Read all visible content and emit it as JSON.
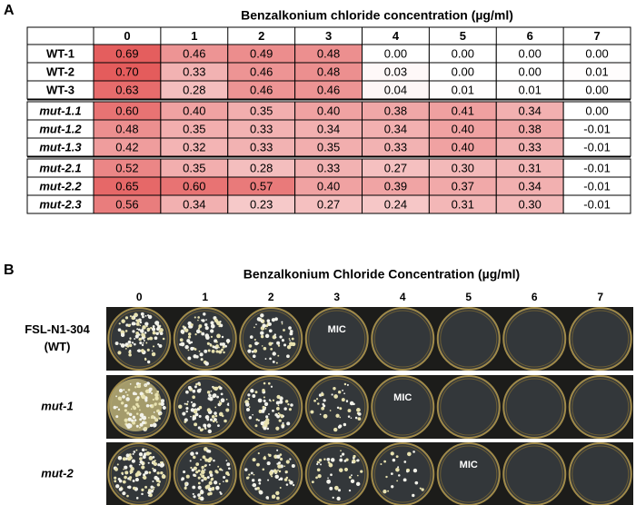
{
  "panel_a": {
    "label": "A",
    "title": "Benzalkonium chloride concentration (µg/ml)",
    "table": {
      "columns": [
        "0",
        "1",
        "2",
        "3",
        "4",
        "5",
        "6",
        "7"
      ],
      "groups": [
        {
          "rows": [
            {
              "name": "WT-1",
              "cells": [
                "0.69",
                "0.46",
                "0.49",
                "0.48",
                "0.00",
                "0.00",
                "0.00",
                "0.00"
              ]
            },
            {
              "name": "WT-2",
              "cells": [
                "0.70",
                "0.33",
                "0.46",
                "0.48",
                "0.03",
                "0.00",
                "0.00",
                "0.01"
              ]
            },
            {
              "name": "WT-3",
              "cells": [
                "0.63",
                "0.28",
                "0.46",
                "0.46",
                "0.04",
                "0.01",
                "0.01",
                "0.00"
              ]
            }
          ]
        },
        {
          "rows": [
            {
              "name": "mut-1.1",
              "cells": [
                "0.60",
                "0.40",
                "0.35",
                "0.40",
                "0.38",
                "0.41",
                "0.34",
                "0.00"
              ]
            },
            {
              "name": "mut-1.2",
              "cells": [
                "0.48",
                "0.35",
                "0.33",
                "0.34",
                "0.34",
                "0.40",
                "0.38",
                "-0.01"
              ]
            },
            {
              "name": "mut-1.3",
              "cells": [
                "0.42",
                "0.32",
                "0.33",
                "0.35",
                "0.33",
                "0.40",
                "0.33",
                "-0.01"
              ]
            }
          ]
        },
        {
          "rows": [
            {
              "name": "mut-2.1",
              "cells": [
                "0.52",
                "0.35",
                "0.28",
                "0.33",
                "0.27",
                "0.30",
                "0.31",
                "-0.01"
              ]
            },
            {
              "name": "mut-2.2",
              "cells": [
                "0.65",
                "0.60",
                "0.57",
                "0.40",
                "0.39",
                "0.37",
                "0.34",
                "-0.01"
              ]
            },
            {
              "name": "mut-2.3",
              "cells": [
                "0.56",
                "0.34",
                "0.23",
                "0.27",
                "0.24",
                "0.31",
                "0.30",
                "-0.01"
              ]
            }
          ]
        }
      ]
    }
  },
  "panel_b": {
    "label": "B",
    "title": "Benzalkonium Chloride Concentration (µg/ml)",
    "columns": [
      "0",
      "1",
      "2",
      "3",
      "4",
      "5",
      "6",
      "7"
    ],
    "rows": [
      {
        "label_lines": [
          "FSL-N1-304",
          "(WT)"
        ],
        "mic": {
          "text": "MIC",
          "column": "3"
        }
      },
      {
        "label_lines": [
          "mut-1"
        ],
        "mic": {
          "text": "MIC",
          "column": "4"
        }
      },
      {
        "label_lines": [
          "mut-2"
        ],
        "mic": {
          "text": "MIC",
          "column": "5"
        }
      }
    ]
  }
}
